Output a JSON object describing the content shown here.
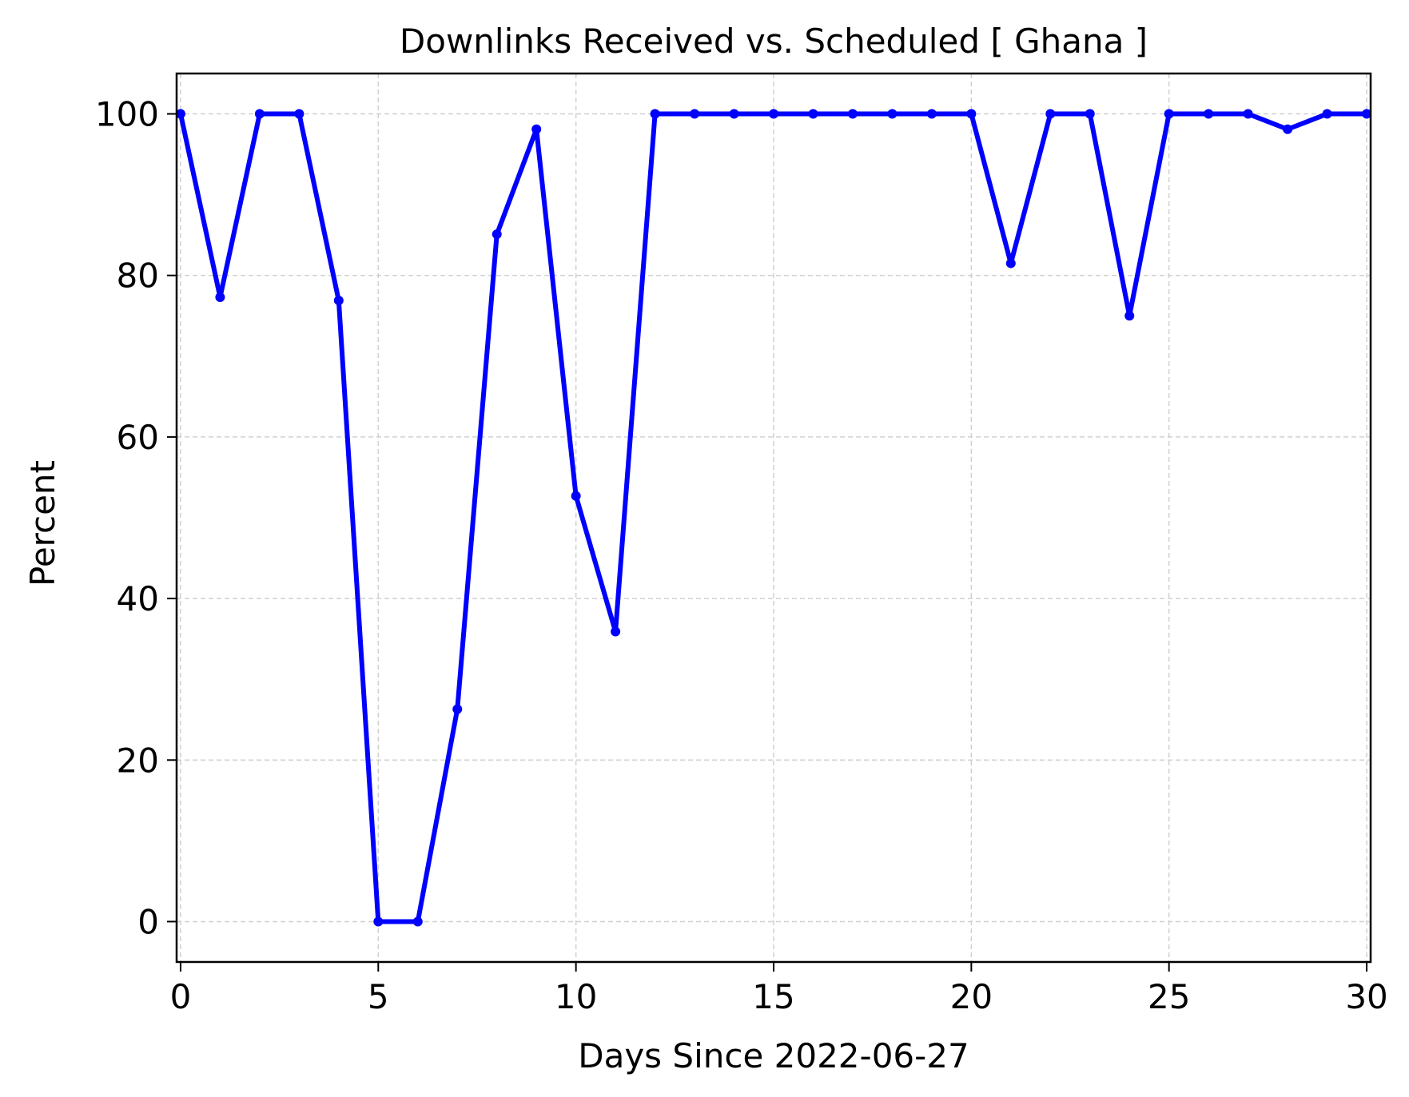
{
  "chart_data": {
    "type": "line",
    "title": "Downlinks Received vs. Scheduled [ Ghana ]",
    "xlabel": "Days Since 2022-06-27",
    "ylabel": "Percent",
    "xlim": [
      -0.1,
      30.1
    ],
    "ylim": [
      -5,
      105
    ],
    "xticks": [
      0,
      5,
      10,
      15,
      20,
      25,
      30
    ],
    "yticks": [
      0,
      20,
      40,
      60,
      80,
      100
    ],
    "grid": true,
    "series": [
      {
        "name": "Percent",
        "color": "#0000ff",
        "marker": "dot",
        "x": [
          0,
          1,
          2,
          3,
          4,
          5,
          6,
          7,
          8,
          9,
          10,
          11,
          12,
          13,
          14,
          15,
          16,
          17,
          18,
          19,
          20,
          21,
          22,
          23,
          24,
          25,
          26,
          27,
          28,
          29,
          30
        ],
        "y": [
          100,
          77.3,
          100,
          100,
          76.9,
          0,
          0,
          26.3,
          85.1,
          98.1,
          52.7,
          35.9,
          100,
          100,
          100,
          100,
          100,
          100,
          100,
          100,
          100,
          81.5,
          100,
          100,
          75,
          100,
          100,
          100,
          98.1,
          100,
          100
        ]
      }
    ]
  }
}
